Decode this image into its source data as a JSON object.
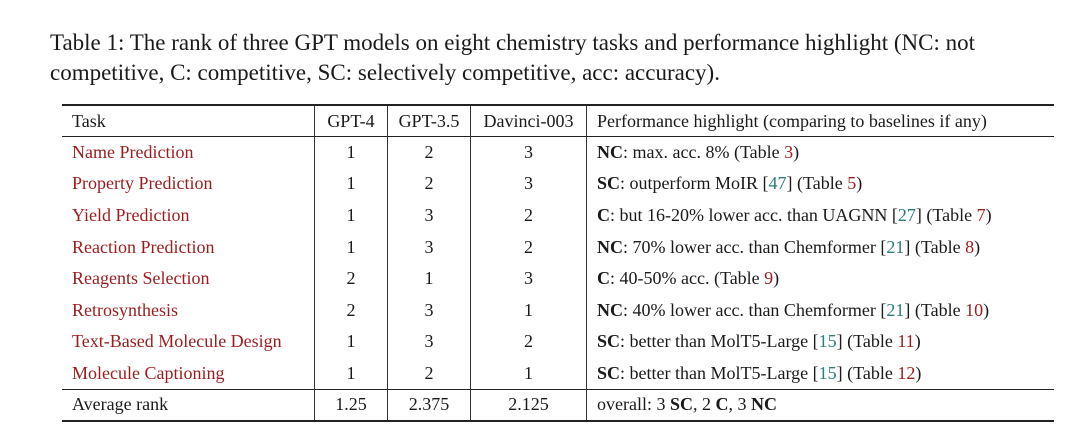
{
  "caption": {
    "line1": "Table 1: The rank of three GPT models on eight chemistry tasks and performance highlight (NC: not",
    "line2": "competitive, C: competitive, SC: selectively competitive, acc: accuracy)."
  },
  "headers": {
    "task": "Task",
    "gpt4": "GPT-4",
    "gpt35": "GPT-3.5",
    "davinci": "Davinci-003",
    "highlight": "Performance highlight (comparing to baselines if any)"
  },
  "rows": [
    {
      "task": "Name Prediction",
      "gpt4": "1",
      "gpt35": "2",
      "davinci": "3",
      "hl": {
        "label": "NC",
        "pre": ": max. acc. 8% (Table ",
        "ref": "3",
        "post": ")"
      }
    },
    {
      "task": "Property Prediction",
      "gpt4": "1",
      "gpt35": "2",
      "davinci": "3",
      "hl": {
        "label": "SC",
        "pre": ": outperform MoIR [",
        "cite": "47",
        "mid": "] (Table ",
        "ref": "5",
        "post": ")"
      }
    },
    {
      "task": "Yield Prediction",
      "gpt4": "1",
      "gpt35": "3",
      "davinci": "2",
      "hl": {
        "label": "C",
        "pre": ": but 16-20% lower acc. than UAGNN [",
        "cite": "27",
        "mid": "] (Table ",
        "ref": "7",
        "post": ")"
      }
    },
    {
      "task": "Reaction Prediction",
      "gpt4": "1",
      "gpt35": "3",
      "davinci": "2",
      "hl": {
        "label": "NC",
        "pre": ": 70% lower acc. than Chemformer [",
        "cite": "21",
        "mid": "] (Table ",
        "ref": "8",
        "post": ")"
      }
    },
    {
      "task": "Reagents Selection",
      "gpt4": "2",
      "gpt35": "1",
      "davinci": "3",
      "hl": {
        "label": "C",
        "pre": ": 40-50% acc. (Table ",
        "ref": "9",
        "post": ")"
      }
    },
    {
      "task": "Retrosynthesis",
      "gpt4": "2",
      "gpt35": "3",
      "davinci": "1",
      "hl": {
        "label": "NC",
        "pre": ": 40% lower acc. than Chemformer [",
        "cite": "21",
        "mid": "] (Table ",
        "ref": "10",
        "post": ")"
      }
    },
    {
      "task": "Text-Based Molecule Design",
      "gpt4": "1",
      "gpt35": "3",
      "davinci": "2",
      "hl": {
        "label": "SC",
        "pre": ": better than MolT5-Large [",
        "cite": "15",
        "mid": "] (Table ",
        "ref": "11",
        "post": ")"
      }
    },
    {
      "task": "Molecule Captioning",
      "gpt4": "1",
      "gpt35": "2",
      "davinci": "1",
      "hl": {
        "label": "SC",
        "pre": ": better than MolT5-Large [",
        "cite": "15",
        "mid": "] (Table ",
        "ref": "12",
        "post": ")"
      }
    }
  ],
  "average": {
    "task": "Average rank",
    "gpt4": "1.25",
    "gpt35": "2.375",
    "davinci": "2.125",
    "hl": {
      "t1": "overall: 3 ",
      "b1": "SC",
      "t2": ", 2 ",
      "b2": "C",
      "t3": ", 3 ",
      "b3": "NC"
    }
  },
  "colors": {
    "task_link": "#9b1c1c",
    "citation": "#2a7d7a",
    "text": "#1a1a1a"
  }
}
